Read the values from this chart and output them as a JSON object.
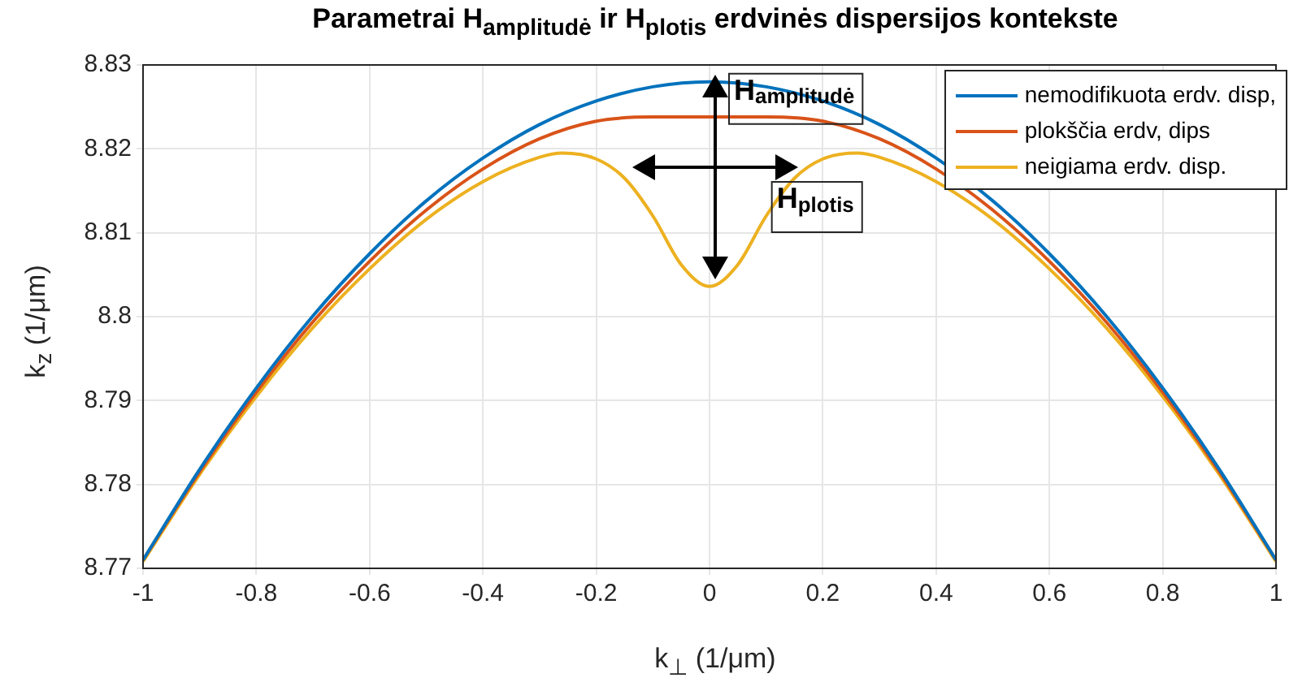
{
  "chart_data": {
    "type": "line",
    "title": "Parametrai H$_{amplitudė}$ ir H$_{plotis}$ erdvinės dispersijos kontekste",
    "xlabel": "k$_{⊥}$ (1/μm)",
    "ylabel": "k$_{z}$ (1/μm)",
    "xlim": [
      -1,
      1
    ],
    "xticks": [
      -1,
      -0.8,
      -0.6,
      -0.4,
      -0.2,
      0,
      0.2,
      0.4,
      0.6,
      0.8,
      1
    ],
    "ylim": [
      8.77,
      8.83
    ],
    "yticks": [
      8.77,
      8.78,
      8.79,
      8.8,
      8.81,
      8.82,
      8.83
    ],
    "grid": true,
    "legend": "top right",
    "marker": "none",
    "line_style": "solid",
    "series": [
      {
        "name": "nemodifikuota erdv. disp,",
        "color": "#0072bd",
        "x": [
          -1,
          -0.9,
          -0.8,
          -0.7,
          -0.6,
          -0.5,
          -0.4,
          -0.3,
          -0.2,
          -0.1,
          0,
          0.1,
          0.2,
          0.3,
          0.4,
          0.5,
          0.6,
          0.7,
          0.8,
          0.9,
          1
        ],
        "values": [
          8.771,
          8.7818,
          8.7915,
          8.8001,
          8.8075,
          8.8138,
          8.8189,
          8.8229,
          8.8257,
          8.8274,
          8.828,
          8.8274,
          8.8257,
          8.8229,
          8.8189,
          8.8138,
          8.8075,
          8.8001,
          8.7915,
          8.7818,
          8.771
        ]
      },
      {
        "name": "plokščia erdv, dips",
        "color": "#d95319",
        "x": [
          -1,
          -0.9,
          -0.8,
          -0.7,
          -0.6,
          -0.5,
          -0.4,
          -0.3,
          -0.2,
          -0.1,
          0,
          0.1,
          0.2,
          0.3,
          0.4,
          0.5,
          0.6,
          0.7,
          0.8,
          0.9,
          1
        ],
        "values": [
          8.771,
          8.7815,
          8.791,
          8.7994,
          8.8066,
          8.8127,
          8.8176,
          8.8212,
          8.8233,
          8.8238,
          8.8238,
          8.8238,
          8.8233,
          8.8212,
          8.8176,
          8.8127,
          8.8066,
          8.7994,
          8.791,
          8.7815,
          8.771
        ]
      },
      {
        "name": "neigiama erdv. disp.",
        "color": "#edb120",
        "x": [
          -1,
          -0.9,
          -0.8,
          -0.7,
          -0.6,
          -0.5,
          -0.4,
          -0.3,
          -0.26,
          -0.2,
          -0.15,
          -0.1,
          -0.05,
          0,
          0.05,
          0.1,
          0.15,
          0.2,
          0.26,
          0.3,
          0.4,
          0.5,
          0.6,
          0.7,
          0.8,
          0.9,
          1
        ],
        "values": [
          8.7708,
          8.7812,
          8.7905,
          8.7987,
          8.8057,
          8.8116,
          8.8161,
          8.819,
          8.8195,
          8.8188,
          8.8165,
          8.812,
          8.8062,
          8.8036,
          8.8062,
          8.812,
          8.8165,
          8.8188,
          8.8195,
          8.819,
          8.8161,
          8.8116,
          8.8057,
          8.7987,
          8.7905,
          8.7812,
          8.7708
        ]
      }
    ],
    "annotations": [
      {
        "text": "H$_{amplitudė}$",
        "x": 0,
        "y": 8.828
      },
      "H$_{plotis}$"
    ]
  }
}
